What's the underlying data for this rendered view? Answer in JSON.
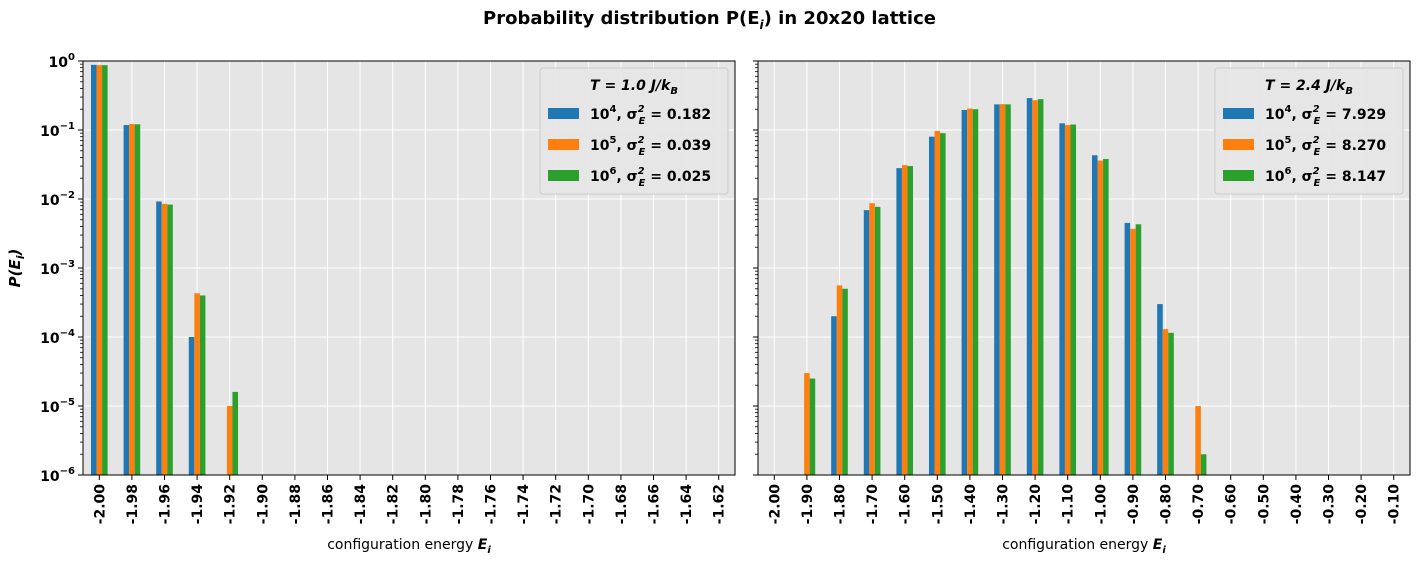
{
  "figure_title": "Probability distribution P(E",
  "figure_title_sub": "i",
  "figure_title_tail": ") in 20x20 lattice",
  "ylabel": "P(E",
  "ylabel_sub": "i",
  "ylabel_tail": ")",
  "colors": [
    "#1f77b4",
    "#ff7f0e",
    "#2ca02c"
  ],
  "chart_data": [
    {
      "type": "bar",
      "yscale": "log",
      "ylim": [
        1e-06,
        1
      ],
      "ytick_labels": [
        {
          "base": "10",
          "exp": "0"
        },
        {
          "base": "10",
          "exp": "−1"
        },
        {
          "base": "10",
          "exp": "−2"
        },
        {
          "base": "10",
          "exp": "−3"
        },
        {
          "base": "10",
          "exp": "−4"
        },
        {
          "base": "10",
          "exp": "−5"
        },
        {
          "base": "10",
          "exp": "−6"
        }
      ],
      "grid": true,
      "xlabel": "configuration energy E",
      "xlabel_sub": "i",
      "categories": [
        "-2.00",
        "-1.98",
        "-1.96",
        "-1.94",
        "-1.92",
        "-1.90",
        "-1.88",
        "-1.86",
        "-1.84",
        "-1.82",
        "-1.80",
        "-1.78",
        "-1.76",
        "-1.74",
        "-1.72",
        "-1.70",
        "-1.68",
        "-1.66",
        "-1.64",
        "-1.62"
      ],
      "legend_title": "T = 1.0 J/k",
      "legend_title_sub": "B",
      "legend_loc": "upper right",
      "series": [
        {
          "name_base": "10",
          "name_exp": "4",
          "name_tail": ", σ",
          "name_sub": "E",
          "name_sup": "2",
          "name_value": " = 0.182",
          "values": [
            0.88,
            0.118,
            0.0092,
            0.0001,
            null,
            null,
            null,
            null,
            null,
            null,
            null,
            null,
            null,
            null,
            null,
            null,
            null,
            null,
            null,
            null
          ]
        },
        {
          "name_base": "10",
          "name_exp": "5",
          "name_tail": ", σ",
          "name_sub": "E",
          "name_sup": "2",
          "name_value": " = 0.039",
          "values": [
            0.87,
            0.122,
            0.0085,
            0.00043,
            1e-05,
            null,
            null,
            null,
            null,
            null,
            null,
            null,
            null,
            null,
            null,
            null,
            null,
            null,
            null,
            null
          ]
        },
        {
          "name_base": "10",
          "name_exp": "6",
          "name_tail": ", σ",
          "name_sub": "E",
          "name_sup": "2",
          "name_value": " = 0.025",
          "values": [
            0.87,
            0.121,
            0.0083,
            0.0004,
            1.6e-05,
            null,
            null,
            null,
            null,
            null,
            null,
            null,
            null,
            null,
            null,
            null,
            null,
            null,
            null,
            null
          ]
        }
      ]
    },
    {
      "type": "bar",
      "yscale": "log",
      "ylim": [
        1e-06,
        1
      ],
      "grid": true,
      "xlabel": "configuration energy E",
      "xlabel_sub": "i",
      "categories": [
        "-2.00",
        "-1.90",
        "-1.80",
        "-1.70",
        "-1.60",
        "-1.50",
        "-1.40",
        "-1.30",
        "-1.20",
        "-1.10",
        "-1.00",
        "-0.90",
        "-0.80",
        "-0.70",
        "-0.60",
        "-0.50",
        "-0.40",
        "-0.30",
        "-0.20",
        "-0.10"
      ],
      "legend_title": "T = 2.4 J/k",
      "legend_title_sub": "B",
      "legend_loc": "upper right",
      "series": [
        {
          "name_base": "10",
          "name_exp": "4",
          "name_tail": ", σ",
          "name_sub": "E",
          "name_sup": "2",
          "name_value": " = 7.929",
          "values": [
            null,
            null,
            0.0002,
            0.0069,
            0.028,
            0.08,
            0.195,
            0.235,
            0.29,
            0.125,
            0.043,
            0.0045,
            0.0003,
            null,
            null,
            null,
            null,
            null,
            null,
            null
          ]
        },
        {
          "name_base": "10",
          "name_exp": "5",
          "name_tail": ", σ",
          "name_sub": "E",
          "name_sup": "2",
          "name_value": " = 8.270",
          "values": [
            null,
            3e-05,
            0.00056,
            0.0087,
            0.031,
            0.097,
            0.205,
            0.237,
            0.27,
            0.118,
            0.036,
            0.0037,
            0.00013,
            1e-05,
            null,
            null,
            null,
            null,
            null,
            null
          ]
        },
        {
          "name_base": "10",
          "name_exp": "6",
          "name_tail": ", σ",
          "name_sub": "E",
          "name_sup": "2",
          "name_value": " = 8.147",
          "values": [
            null,
            2.5e-05,
            0.0005,
            0.0077,
            0.03,
            0.09,
            0.2,
            0.235,
            0.28,
            0.12,
            0.038,
            0.0043,
            0.000115,
            2e-06,
            null,
            null,
            null,
            null,
            null,
            null
          ]
        }
      ]
    }
  ]
}
